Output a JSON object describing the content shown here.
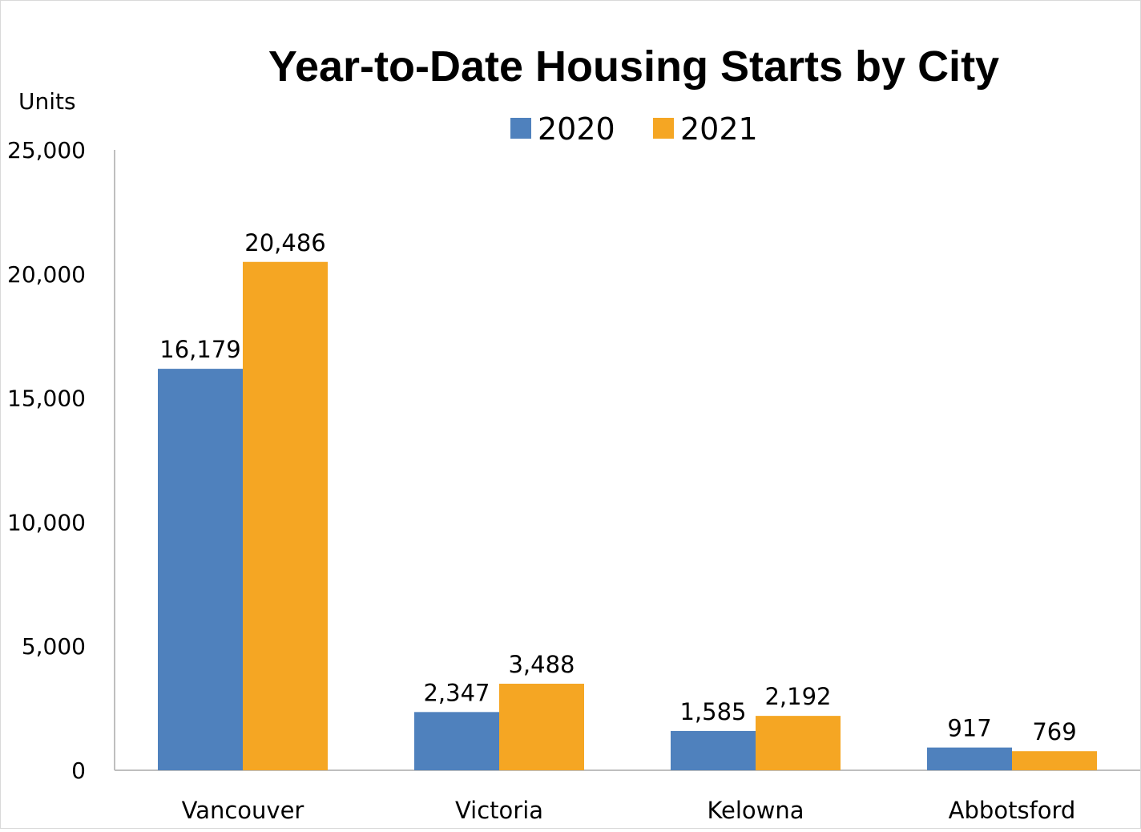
{
  "chart_data": {
    "type": "bar",
    "title": "Year-to-Date Housing Starts by City",
    "ylabel": "Units",
    "xlabel": "",
    "categories": [
      "Vancouver",
      "Victoria",
      "Kelowna",
      "Abbotsford"
    ],
    "series": [
      {
        "name": "2020",
        "color": "#4f81bd",
        "values": [
          16179,
          2347,
          1585,
          917
        ],
        "labels": [
          "16,179",
          "2,347",
          "1,585",
          "917"
        ]
      },
      {
        "name": "2021",
        "color": "#f5a623",
        "values": [
          20486,
          3488,
          2192,
          769
        ],
        "labels": [
          "20,486",
          "3,488",
          "2,192",
          "769"
        ]
      }
    ],
    "ylim": [
      0,
      25000
    ],
    "yticks": [
      0,
      5000,
      10000,
      15000,
      20000,
      25000
    ],
    "ytick_labels": [
      "0",
      "5,000",
      "10,000",
      "15,000",
      "20,000",
      "25,000"
    ],
    "grid": false,
    "legend_position": "top-center"
  }
}
